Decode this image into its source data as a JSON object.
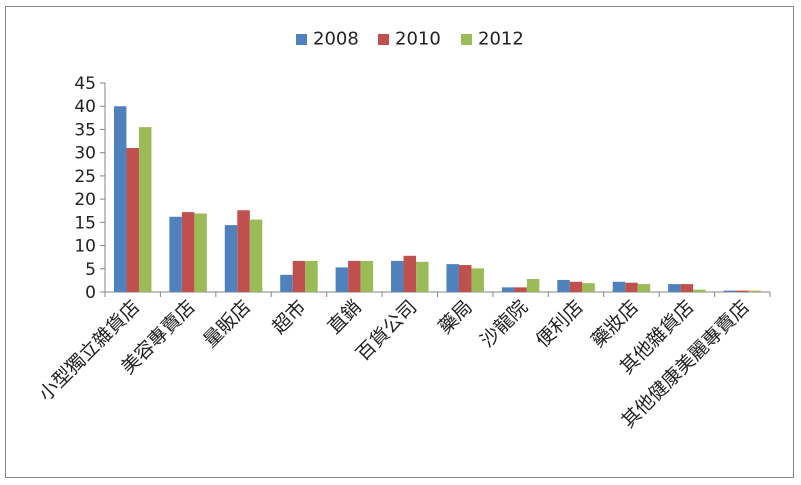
{
  "chart_data": {
    "type": "bar",
    "title": "",
    "xlabel": "",
    "ylabel": "",
    "ylim": [
      0,
      45
    ],
    "yticks": [
      0,
      5,
      10,
      15,
      20,
      25,
      30,
      35,
      40,
      45
    ],
    "grid": false,
    "legend_position": "top-center",
    "categories": [
      "小型獨立雜貨店",
      "美容專賣店",
      "量販店",
      "超市",
      "直銷",
      "百貨公司",
      "藥局",
      "沙龍院",
      "便利店",
      "藥妝店",
      "其他雜貨店",
      "其他健康美麗專賣店"
    ],
    "series": [
      {
        "name": "2008",
        "color": "#4F81BD",
        "values": [
          40,
          16.2,
          14.4,
          3.7,
          5.3,
          6.7,
          6.0,
          1.0,
          2.6,
          2.2,
          1.7,
          0.3
        ]
      },
      {
        "name": "2010",
        "color": "#C0504D",
        "values": [
          31,
          17.2,
          17.6,
          6.7,
          6.7,
          7.8,
          5.8,
          1.0,
          2.2,
          2.0,
          1.7,
          0.3
        ]
      },
      {
        "name": "2012",
        "color": "#9BBB59",
        "values": [
          35.5,
          16.9,
          15.6,
          6.7,
          6.7,
          6.5,
          5.1,
          2.8,
          1.9,
          1.7,
          0.5,
          0.3
        ]
      }
    ]
  }
}
